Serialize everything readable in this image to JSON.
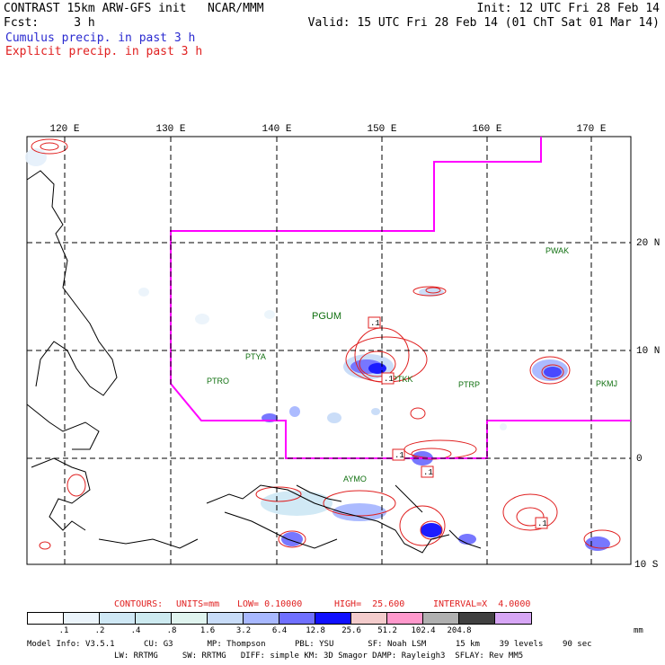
{
  "header": {
    "line1_left": "CONTRAST 15km ARW-GFS init   NCAR/MMM",
    "line1_right": "Init: 12 UTC Fri 28 Feb 14",
    "line2_left": "Fcst:     3 h",
    "line2_right": "Valid: 15 UTC Fri 28 Feb 14 (01 ChT Sat 01 Mar 14)",
    "line3": "Cumulus precip. in past 3 h",
    "line4": "Explicit precip. in past 3 h"
  },
  "map": {
    "lon_labels": [
      "120 E",
      "130 E",
      "140 E",
      "150 E",
      "160 E",
      "170 E"
    ],
    "lat_labels": [
      "20 N",
      "10 N",
      "0",
      "10 S"
    ],
    "stations": [
      "PWAK",
      "PGUM",
      "PTYA",
      "PTRO",
      "PTKK",
      "PTRP",
      "PKMJ",
      "AYMO"
    ],
    "contour_box_labels": [
      ".1",
      ".1",
      ".1",
      ".1",
      ".1"
    ],
    "colors": {
      "boundary": "#ff00ff",
      "contour": "#e02020",
      "grid": "#000000"
    }
  },
  "contours": {
    "label": "CONTOURS:",
    "units": "UNITS=mm",
    "low": "LOW= 0.10000",
    "high": "HIGH=  25.600",
    "interval": "INTERVAL=X  4.0000"
  },
  "legend": {
    "colors": [
      "#ffffff",
      "#ebf4fb",
      "#cfe8f5",
      "#cdeaf0",
      "#e0f4ef",
      "#c8dcf8",
      "#a8b8ff",
      "#7070ff",
      "#1010ff",
      "#f4cccc",
      "#ff99cc",
      "#b0b0b0",
      "#404040",
      "#d7a6f5"
    ],
    "ticks": [
      ".1",
      ".2",
      ".4",
      ".8",
      "1.6",
      "3.2",
      "6.4",
      "12.8",
      "25.6",
      "51.2",
      "102.4",
      "204.8"
    ],
    "unit": "mm"
  },
  "model_info": {
    "line1": "Model Info: V3.5.1      CU: G3       MP: Thompson      PBL: YSU       SF: Noah LSM      15 km    39 levels    90 sec",
    "line2": "LW: RRTMG     SW: RRTMG   DIFF: simple KM: 3D Smagor DAMP: Rayleigh3  SFLAY: Rev MM5"
  }
}
